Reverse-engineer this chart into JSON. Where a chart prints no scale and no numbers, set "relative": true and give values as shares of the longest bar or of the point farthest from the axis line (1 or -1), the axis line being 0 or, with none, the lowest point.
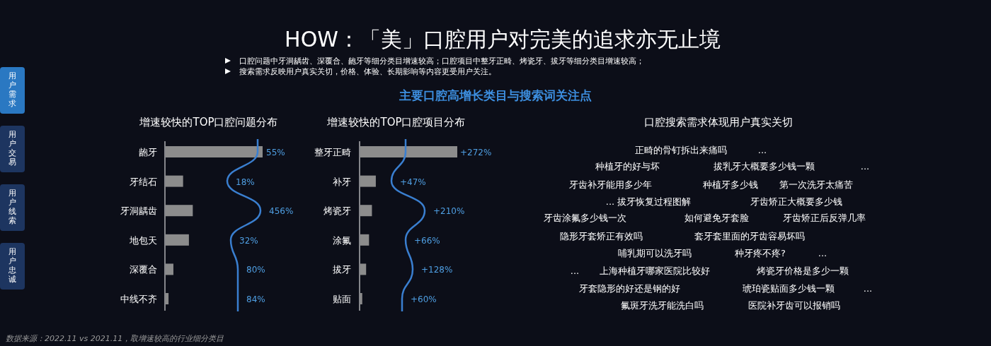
{
  "chart_data": [
    {
      "type": "other",
      "title": "HOW：「美」口腔用户对完美的追求亦无止境",
      "subtitle": "主要口腔高增长类目与搜索词关注点",
      "annotations": [
        "口腔问题中牙洞龋齿、深覆合、龅牙等细分类目增速较高；口腔项目中整牙正畸、烤瓷牙、拔牙等细分类目增速较高；",
        "搜索需求反映用户真实关切，价格、体验、长期影响等内容更受用户关注。",
        "用户需求",
        "用户交易",
        "用户线索",
        "用户忠诚",
        "数据来源：2022.11 vs 2021.11，取增速较高的行业细分类目"
      ]
    },
    {
      "type": "bar",
      "orientation": "horizontal",
      "relative": true,
      "title": "增速较快的TOP口腔问题分布",
      "categories": [
        "龅牙",
        "牙结石",
        "牙洞龋齿",
        "地包天",
        "深覆合",
        "中线不齐"
      ],
      "values": [
        1,
        0.18,
        0.28,
        0.24,
        0.08,
        0.03
      ],
      "color": "#8c8c8c",
      "annotations": [
        "55%",
        "18%",
        "456%",
        "32%",
        "80%",
        "84%"
      ]
    },
    {
      "type": "bar",
      "orientation": "horizontal",
      "relative": true,
      "title": "增速较快的TOP口腔项目分布",
      "categories": [
        "整牙正畸",
        "补牙",
        "烤瓷牙",
        "涂氟",
        "拔牙",
        "贴面"
      ],
      "values": [
        1,
        0.16,
        0.12,
        0.09,
        0.06,
        0.02
      ],
      "color": "#8c8c8c",
      "annotations": [
        "+272%",
        "+47%",
        "+210%",
        "+66%",
        "+128%",
        "+60%"
      ]
    },
    {
      "type": "other",
      "title": "口腔搜索需求体现用户真实关切",
      "annotations": [
        "正畸的骨钉拆出来痛吗",
        "...",
        "种植牙的好与坏",
        "拔乳牙大概要多少钱一颗",
        "...",
        "牙齿补牙能用多少年",
        "种植牙多少钱",
        "第一次洗牙太痛苦",
        "...",
        "拔牙恢复过程图解",
        "牙齿矫正大概要多少钱",
        "牙齿涂氟多少钱一次",
        "如何避免牙套脸",
        "牙齿矫正后反弹几率",
        "隐形牙套矫正有效吗",
        "套牙套里面的牙齿容易坏吗",
        "哺乳期可以洗牙吗",
        "种牙疼不疼?",
        "...",
        "...",
        "上海种植牙哪家医院比较好",
        "烤瓷牙价格是多少一颗",
        "牙套隐形的好还是钢的好",
        "琥珀瓷贴面多少钱一颗",
        "...",
        "氟斑牙洗牙能洗白吗",
        "医院补牙齿可以报销吗"
      ]
    }
  ]
}
